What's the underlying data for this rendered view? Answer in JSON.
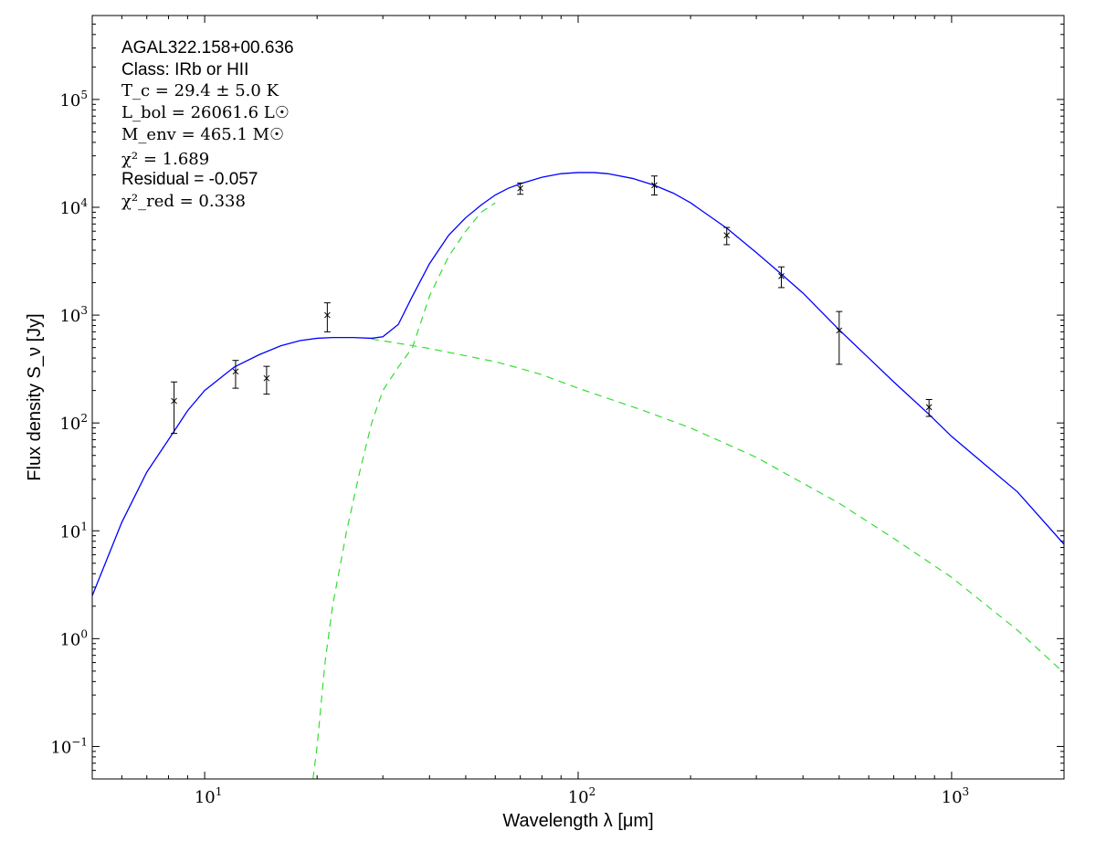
{
  "chart_data": {
    "type": "scatter",
    "title": "",
    "xlabel": "Wavelength λ [μm]",
    "ylabel": "Flux density S_ν [Jy]",
    "x_scale": "log",
    "y_scale": "log",
    "xlim": [
      5,
      2000
    ],
    "ylim": [
      0.05,
      600000
    ],
    "x_ticks": [
      {
        "value": 10,
        "base": "10",
        "exp": "1"
      },
      {
        "value": 100,
        "base": "10",
        "exp": "2"
      },
      {
        "value": 1000,
        "base": "10",
        "exp": "3"
      }
    ],
    "y_ticks": [
      {
        "value": 0.1,
        "base": "10",
        "exp": "−1"
      },
      {
        "value": 1,
        "base": "10",
        "exp": "0"
      },
      {
        "value": 10,
        "base": "10",
        "exp": "1"
      },
      {
        "value": 100,
        "base": "10",
        "exp": "2"
      },
      {
        "value": 1000,
        "base": "10",
        "exp": "3"
      },
      {
        "value": 10000,
        "base": "10",
        "exp": "4"
      },
      {
        "value": 100000,
        "base": "10",
        "exp": "5"
      }
    ],
    "annotation": {
      "source": "AGAL322.158+00.636",
      "class": "Class: IRb or HII",
      "tc": "T_c = 29.4 ± 5.0 K",
      "lbol": "L_bol = 26061.6 L☉",
      "menv": "M_env = 465.1 M☉",
      "chi2": "χ² = 1.689",
      "residual": "Residual = -0.057",
      "chi2red": "χ²_red = 0.338"
    },
    "measurements": [
      {
        "x": 8.28,
        "y": 160,
        "ylo": 80,
        "yhi": 240
      },
      {
        "x": 12.1,
        "y": 300,
        "ylo": 210,
        "yhi": 380
      },
      {
        "x": 14.65,
        "y": 260,
        "ylo": 185,
        "yhi": 335
      },
      {
        "x": 21.3,
        "y": 1000,
        "ylo": 700,
        "yhi": 1300
      },
      {
        "x": 70,
        "y": 15000,
        "ylo": 13200,
        "yhi": 16800
      },
      {
        "x": 160,
        "y": 16000,
        "ylo": 13000,
        "yhi": 19500
      },
      {
        "x": 250,
        "y": 5500,
        "ylo": 4500,
        "yhi": 6500
      },
      {
        "x": 350,
        "y": 2300,
        "ylo": 1800,
        "yhi": 2800
      },
      {
        "x": 500,
        "y": 720,
        "ylo": 350,
        "yhi": 1080
      },
      {
        "x": 870,
        "y": 140,
        "ylo": 115,
        "yhi": 165
      }
    ],
    "model_total": {
      "color": "#0000ff",
      "style": "solid",
      "x": [
        5,
        6,
        7,
        8,
        9,
        10,
        12,
        14,
        16,
        18,
        20,
        22,
        25,
        28,
        30,
        33,
        36,
        40,
        45,
        50,
        55,
        60,
        65,
        70,
        80,
        90,
        100,
        110,
        120,
        140,
        160,
        180,
        200,
        250,
        300,
        350,
        400,
        500,
        600,
        700,
        870,
        1000,
        1200,
        1500,
        2000
      ],
      "y": [
        2.5,
        12,
        35,
        70,
        130,
        200,
        330,
        430,
        520,
        580,
        610,
        620,
        620,
        610,
        630,
        820,
        1500,
        3000,
        5500,
        8000,
        10500,
        13000,
        15000,
        16500,
        19000,
        20500,
        21000,
        21000,
        20500,
        18500,
        16000,
        13500,
        11000,
        6400,
        3800,
        2400,
        1600,
        730,
        400,
        240,
        120,
        75,
        44,
        23,
        7.5
      ]
    },
    "model_components": [
      {
        "color": "#33dd33",
        "style": "dashed",
        "x": [
          28,
          35,
          40,
          50,
          60,
          70,
          80,
          100,
          150,
          200,
          300,
          500,
          700,
          1000,
          1500,
          2000
        ],
        "y": [
          600,
          530,
          490,
          420,
          370,
          320,
          280,
          210,
          130,
          90,
          48,
          18,
          8.5,
          3.7,
          1.2,
          0.48
        ]
      },
      {
        "color": "#33dd33",
        "style": "dashed",
        "x": [
          19.5,
          20,
          21,
          22,
          24,
          26,
          28,
          30,
          33,
          36,
          40,
          45,
          50,
          55,
          60
        ],
        "y": [
          0.05,
          0.1,
          0.6,
          2,
          10,
          35,
          100,
          200,
          330,
          500,
          1500,
          3500,
          6000,
          9000,
          11000
        ]
      }
    ]
  }
}
